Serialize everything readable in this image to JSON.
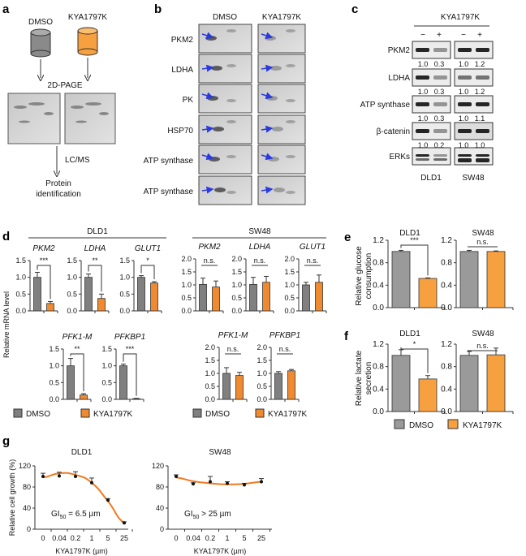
{
  "panel_labels": {
    "a": "a",
    "b": "b",
    "c": "c",
    "d": "d",
    "e": "e",
    "f": "f",
    "g": "g"
  },
  "colors": {
    "dmso": "#808080",
    "kya": "#f08a30",
    "kya_light": "#f7a040",
    "arrow": "#2a3ae0",
    "curve": "#f07a20"
  },
  "panel_a": {
    "dmso": "DMSO",
    "kya": "KYA1797K",
    "step1": "2D-PAGE",
    "step2": "LC/MS",
    "result_line1": "Protein",
    "result_line2": "identification"
  },
  "panel_b": {
    "col1": "DMSO",
    "col2": "KYA1797K",
    "rows": [
      "PKM2",
      "LDHA",
      "PK",
      "HSP70",
      "ATP synthase",
      "ATP synthase"
    ]
  },
  "panel_c": {
    "treatment": "KYA1797K",
    "signs": [
      "−",
      "+",
      "−",
      "+"
    ],
    "cell_lines": [
      "DLD1",
      "SW48"
    ],
    "rows": [
      {
        "label": "PKM2",
        "quant": [
          "1.0",
          "0.3",
          "1.0",
          "1.2"
        ]
      },
      {
        "label": "LDHA",
        "quant": [
          "1.0",
          "0.3",
          "1.0",
          "1.2"
        ]
      },
      {
        "label": "ATP synthase",
        "quant": [
          "1.0",
          "0.3",
          "1.0",
          "1.1"
        ]
      },
      {
        "label": "β-catenin",
        "quant": [
          "1.0",
          "0.2",
          "1.0",
          "1.0"
        ]
      },
      {
        "label": "ERKs",
        "quant": null
      }
    ]
  },
  "panel_d": {
    "group1": "DLD1",
    "group2": "SW48",
    "ylabel": "Relative mRNA level",
    "legend": [
      "DMSO",
      "KYA1797K"
    ]
  },
  "panel_ef": {
    "title1": "DLD1",
    "title2": "SW48",
    "ylabel_e": [
      "Relative glucose",
      "consumption"
    ],
    "ylabel_f": [
      "Relative lactate",
      "secretion"
    ],
    "legend": [
      "DMSO",
      "KYA1797K"
    ]
  },
  "chart_data": [
    {
      "id": "d-dld1-pkm2",
      "type": "bar",
      "title": "PKM2",
      "categories": [
        "DMSO",
        "KYA1797K"
      ],
      "values": [
        1.0,
        0.22
      ],
      "errors": [
        0.15,
        0.06
      ],
      "ylim": [
        0,
        1.5
      ],
      "ticks": [
        "0.0",
        "0.5",
        "1.0",
        "1.5"
      ],
      "sig": "***"
    },
    {
      "id": "d-dld1-ldha",
      "type": "bar",
      "title": "LDHA",
      "categories": [
        "DMSO",
        "KYA1797K"
      ],
      "values": [
        1.0,
        0.37
      ],
      "errors": [
        0.1,
        0.13
      ],
      "ylim": [
        0,
        1.5
      ],
      "ticks": [
        "0.0",
        "0.5",
        "1.0",
        "1.5"
      ],
      "sig": "**"
    },
    {
      "id": "d-dld1-glut1",
      "type": "bar",
      "title": "GLUT1",
      "categories": [
        "DMSO",
        "KYA1797K"
      ],
      "values": [
        1.0,
        0.83
      ],
      "errors": [
        0.05,
        0.04
      ],
      "ylim": [
        0,
        1.5
      ],
      "ticks": [
        "0.0",
        "0.5",
        "1.0",
        "1.5"
      ],
      "sig": "*"
    },
    {
      "id": "d-dld1-pfk1m",
      "type": "bar",
      "title": "PFK1-M",
      "categories": [
        "DMSO",
        "KYA1797K"
      ],
      "values": [
        1.0,
        0.13
      ],
      "errors": [
        0.22,
        0.04
      ],
      "ylim": [
        0,
        1.5
      ],
      "ticks": [
        "0.0",
        "0.5",
        "1.0",
        "1.5"
      ],
      "sig": "**"
    },
    {
      "id": "d-dld1-pfkbp1",
      "type": "bar",
      "title": "PFKBP1",
      "categories": [
        "DMSO",
        "KYA1797K"
      ],
      "values": [
        1.0,
        0.02
      ],
      "errors": [
        0.05,
        0.01
      ],
      "ylim": [
        0,
        1.5
      ],
      "ticks": [
        "0.0",
        "0.5",
        "1.0",
        "1.5"
      ],
      "sig": "***"
    },
    {
      "id": "d-sw48-pkm2",
      "type": "bar",
      "title": "PKM2",
      "categories": [
        "DMSO",
        "KYA1797K"
      ],
      "values": [
        1.02,
        0.92
      ],
      "errors": [
        0.24,
        0.23
      ],
      "ylim": [
        0,
        2.0
      ],
      "ticks": [
        "0.0",
        "0.5",
        "1.0",
        "1.5",
        "2.0"
      ],
      "sig": "n.s."
    },
    {
      "id": "d-sw48-ldha",
      "type": "bar",
      "title": "LDHA",
      "categories": [
        "DMSO",
        "KYA1797K"
      ],
      "values": [
        1.02,
        1.1
      ],
      "errors": [
        0.27,
        0.23
      ],
      "ylim": [
        0,
        2.0
      ],
      "ticks": [
        "0.0",
        "0.5",
        "1.0",
        "1.5",
        "2.0"
      ],
      "sig": "n.s."
    },
    {
      "id": "d-sw48-glut1",
      "type": "bar",
      "title": "GLUT1",
      "categories": [
        "DMSO",
        "KYA1797K"
      ],
      "values": [
        1.0,
        1.1
      ],
      "errors": [
        0.1,
        0.28
      ],
      "ylim": [
        0,
        2.0
      ],
      "ticks": [
        "0.0",
        "0.5",
        "1.0",
        "1.5",
        "2.0"
      ],
      "sig": "n.s."
    },
    {
      "id": "d-sw48-pfk1m",
      "type": "bar",
      "title": "PFK1-M",
      "categories": [
        "DMSO",
        "KYA1797K"
      ],
      "values": [
        1.0,
        0.92
      ],
      "errors": [
        0.22,
        0.12
      ],
      "ylim": [
        0,
        2.0
      ],
      "ticks": [
        "0.0",
        "0.5",
        "1.0",
        "1.5",
        "2.0"
      ],
      "sig": "n.s."
    },
    {
      "id": "d-sw48-pfkbp1",
      "type": "bar",
      "title": "PFKBP1",
      "categories": [
        "DMSO",
        "KYA1797K"
      ],
      "values": [
        1.0,
        1.1
      ],
      "errors": [
        0.07,
        0.05
      ],
      "ylim": [
        0,
        2.0
      ],
      "ticks": [
        "0.0",
        "0.5",
        "1.0",
        "1.5",
        "2.0"
      ],
      "sig": "n.s."
    },
    {
      "id": "e-dld1",
      "type": "bar",
      "title": "",
      "categories": [
        "DMSO",
        "KYA1797K"
      ],
      "values": [
        1.0,
        0.52
      ],
      "errors": [
        0.02,
        0.01
      ],
      "ylim": [
        0,
        1.2
      ],
      "ticks": [
        "0.0",
        "0.4",
        "0.8",
        "1.2"
      ],
      "sig": "***"
    },
    {
      "id": "e-sw48",
      "type": "bar",
      "title": "",
      "categories": [
        "DMSO",
        "KYA1797K"
      ],
      "values": [
        1.0,
        1.0
      ],
      "errors": [
        0.02,
        0.01
      ],
      "ylim": [
        0,
        1.2
      ],
      "ticks": [
        "0.0",
        "0.4",
        "0.8",
        "1.2"
      ],
      "sig": "n.s."
    },
    {
      "id": "f-dld1",
      "type": "bar",
      "title": "",
      "categories": [
        "DMSO",
        "KYA1797K"
      ],
      "values": [
        1.0,
        0.58
      ],
      "errors": [
        0.1,
        0.06
      ],
      "ylim": [
        0,
        1.2
      ],
      "ticks": [
        "0.0",
        "0.4",
        "0.8",
        "1.2"
      ],
      "sig": "*"
    },
    {
      "id": "f-sw48",
      "type": "bar",
      "title": "",
      "categories": [
        "DMSO",
        "KYA1797K"
      ],
      "values": [
        1.0,
        1.01
      ],
      "errors": [
        0.07,
        0.12
      ],
      "ylim": [
        0,
        1.2
      ],
      "ticks": [
        "0.0",
        "0.4",
        "0.8",
        "1.2"
      ],
      "sig": "n.s."
    },
    {
      "id": "g-dld1",
      "type": "line",
      "title": "DLD1",
      "xlabel": "KYA1797K (µm)",
      "ylabel": "Relative cell growth (%)",
      "x": [
        "0",
        "0.04",
        "0.2",
        "1",
        "5",
        "25"
      ],
      "values": [
        100,
        101,
        100,
        88,
        55,
        12
      ],
      "errors": [
        6,
        7,
        9,
        9,
        3,
        2
      ],
      "fit": [
        98,
        106,
        103,
        88,
        53,
        12
      ],
      "ylim": [
        0,
        120
      ],
      "ticks": [
        "0",
        "40",
        "80",
        "120"
      ],
      "annotation": {
        "prefix": "GI",
        "sub": "50",
        "suffix": " = 6.5 µm"
      }
    },
    {
      "id": "g-sw48",
      "type": "line",
      "title": "SW48",
      "xlabel": "KYA1797K (µm)",
      "ylabel": "",
      "x": [
        "0",
        "0.04",
        "0.2",
        "1",
        "5",
        "25"
      ],
      "values": [
        100,
        86,
        90,
        87,
        84,
        90
      ],
      "errors": [
        3,
        2,
        10,
        3,
        3,
        6
      ],
      "fit": [
        98,
        91,
        87,
        85,
        86,
        90
      ],
      "ylim": [
        0,
        120
      ],
      "ticks": [
        "0",
        "40",
        "80",
        "120"
      ],
      "annotation": {
        "prefix": "GI",
        "sub": "50",
        "suffix": " > 25 µm"
      }
    }
  ]
}
